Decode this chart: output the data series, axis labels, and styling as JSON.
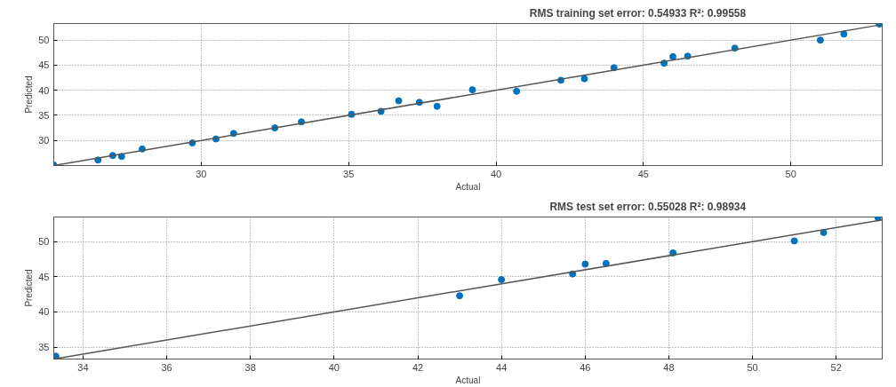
{
  "chart_data": [
    {
      "type": "scatter",
      "title": "RMS training set error: 0.54933  R²: 0.99558",
      "xlabel": "Actual",
      "ylabel": "Predicted",
      "xlim": [
        25,
        53.1
      ],
      "ylim": [
        25,
        53.3
      ],
      "xticks": [
        30,
        35,
        40,
        45,
        50
      ],
      "yticks": [
        30,
        35,
        40,
        45,
        50
      ],
      "grid": true,
      "series": [
        {
          "marker": "circle",
          "color": "#0072bd",
          "x": [
            25,
            26.5,
            27.0,
            27.3,
            28.0,
            29.7,
            30.5,
            31.1,
            32.5,
            33.4,
            35.1,
            36.1,
            36.7,
            37.4,
            38.0,
            39.2,
            40.7,
            42.2,
            43.0,
            44.0,
            45.7,
            46.0,
            46.5,
            48.1,
            51.0,
            51.8,
            53.0
          ],
          "values": [
            25.1,
            26.1,
            27.0,
            26.8,
            28.3,
            29.5,
            30.3,
            31.4,
            32.5,
            33.7,
            35.2,
            35.8,
            37.9,
            37.6,
            36.8,
            40.1,
            39.8,
            42.0,
            42.3,
            44.5,
            45.4,
            46.7,
            46.8,
            48.4,
            50.0,
            51.2,
            53.2
          ]
        },
        {
          "type": "line",
          "color": "#555555",
          "x": [
            25,
            53.1
          ],
          "values": [
            25,
            53.1
          ]
        }
      ]
    },
    {
      "type": "scatter",
      "title": "RMS test set error: 0.55028  R²: 0.98934",
      "xlabel": "Actual",
      "ylabel": "Predicted",
      "xlim": [
        33.3,
        53.1
      ],
      "ylim": [
        33.3,
        53.5
      ],
      "xticks": [
        34,
        36,
        38,
        40,
        42,
        44,
        46,
        48,
        50,
        52
      ],
      "yticks": [
        35,
        40,
        45,
        50
      ],
      "grid": true,
      "series": [
        {
          "marker": "circle",
          "color": "#0072bd",
          "x": [
            33.35,
            43.0,
            44.0,
            45.7,
            46.0,
            46.5,
            48.1,
            51.0,
            51.7,
            53.0
          ],
          "values": [
            33.7,
            42.3,
            44.6,
            45.4,
            46.8,
            46.9,
            48.4,
            50.1,
            51.3,
            53.4
          ]
        },
        {
          "type": "line",
          "color": "#555555",
          "x": [
            33.3,
            53.1
          ],
          "values": [
            33.3,
            53.1
          ]
        }
      ]
    }
  ]
}
